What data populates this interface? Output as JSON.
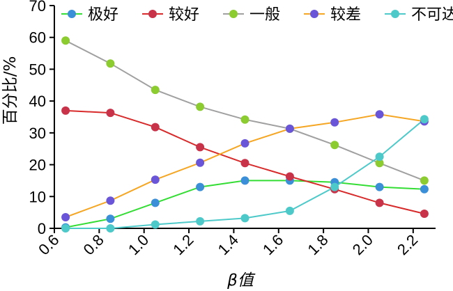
{
  "chart_data": {
    "type": "line",
    "xlabel": "β值",
    "ylabel": "百分比/%",
    "xlim": [
      0.6,
      2.3
    ],
    "ylim": [
      0,
      70
    ],
    "x_ticks": [
      "0.6",
      "0.8",
      "1.0",
      "1.2",
      "1.4",
      "1.6",
      "1.8",
      "2.0",
      "2.2"
    ],
    "y_ticks": [
      "0",
      "10",
      "20",
      "30",
      "40",
      "50",
      "60",
      "70"
    ],
    "x": [
      0.65,
      0.85,
      1.05,
      1.25,
      1.45,
      1.65,
      1.85,
      2.05,
      2.25
    ],
    "legend_position": "top",
    "grid": false,
    "series": [
      {
        "name": "极好",
        "line_color": "#33dd33",
        "marker_color": "#3a8fd8",
        "values": [
          0.3,
          3,
          8,
          13,
          15,
          15,
          14.5,
          13,
          12.3
        ]
      },
      {
        "name": "较好",
        "line_color": "#d82a2a",
        "marker_color": "#c8334a",
        "values": [
          37,
          36.3,
          31.8,
          25.5,
          20.5,
          16.3,
          12.3,
          8,
          4.6
        ]
      },
      {
        "name": "一般",
        "line_color": "#a0a0a0",
        "marker_color": "#8ccc30",
        "values": [
          59,
          51.8,
          43.5,
          38.2,
          34.2,
          31.3,
          26.2,
          20.5,
          15
        ]
      },
      {
        "name": "较差",
        "line_color": "#f5a623",
        "marker_color": "#6a55d8",
        "values": [
          3.5,
          8.7,
          15.3,
          20.6,
          26.7,
          31.3,
          33.3,
          35.8,
          33.6
        ]
      },
      {
        "name": "不可达",
        "line_color": "#4ec9c9",
        "marker_color": "#4ec9c9",
        "values": [
          0,
          0,
          1.2,
          2.2,
          3.2,
          5.5,
          13,
          22.5,
          34.3
        ]
      }
    ]
  }
}
